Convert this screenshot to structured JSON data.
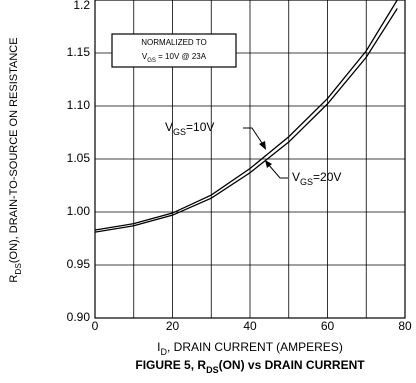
{
  "chart_data": {
    "type": "line",
    "title": [
      "FIGURE 5, R",
      "DS",
      "(ON) vs DRAIN CURRENT"
    ],
    "xlabel": [
      "I",
      "D",
      ", DRAIN CURRENT (AMPERES)"
    ],
    "ylabel": [
      "R",
      "DS",
      "(ON), DRAIN-TO-SOURCE ON RESISTANCE"
    ],
    "box_text": [
      [
        "NORMALIZED TO"
      ],
      [
        "V",
        "GS",
        " = 10V  @  23A"
      ]
    ],
    "x": [
      0,
      10,
      20,
      30,
      40,
      50,
      60,
      70,
      78
    ],
    "series": [
      {
        "name": [
          "V",
          "GS",
          "=10V"
        ],
        "color": "#000000",
        "values": [
          0.983,
          0.989,
          0.999,
          1.016,
          1.041,
          1.071,
          1.107,
          1.152,
          1.2
        ]
      },
      {
        "name": [
          "V",
          "GS",
          "=20V"
        ],
        "color": "#000000",
        "values": [
          0.981,
          0.987,
          0.997,
          1.013,
          1.037,
          1.066,
          1.102,
          1.146,
          1.192
        ]
      }
    ],
    "xlim": [
      0,
      80
    ],
    "xticks": [
      0,
      20,
      40,
      60,
      80
    ],
    "x_minor_grid": [
      10,
      30,
      50,
      70
    ],
    "ylim": [
      0.9,
      1.2
    ],
    "yticks": [
      {
        "value": 0.9,
        "label": "0.90"
      },
      0.95,
      {
        "value": 1.0,
        "label": "1.00"
      },
      1.05,
      {
        "value": 1.1,
        "label": "1.10"
      },
      1.15,
      {
        "value": 1.2,
        "label": "1.2"
      }
    ],
    "grid": true
  }
}
